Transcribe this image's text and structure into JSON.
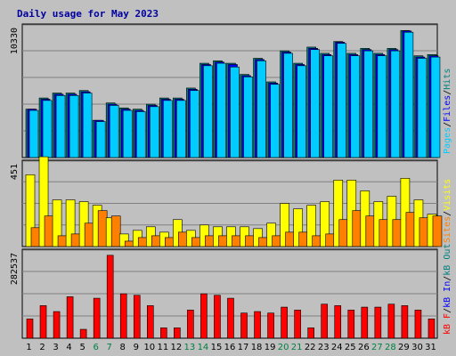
{
  "title": "Daily usage for May 2023",
  "colors": {
    "background": "#c0c0c0",
    "panel": "#c0c0c0",
    "title": "#0000a0",
    "pages": "#00ccff",
    "files": "#0000ff",
    "hits": "#008080",
    "visits": "#ffff00",
    "sites": "#ff8000",
    "kbf": "#ff0000",
    "kbin": "#0000ff",
    "kbout": "#008080",
    "weekend": "#008040",
    "weekday": "#000000"
  },
  "legends": {
    "top": [
      {
        "text": "Pages",
        "color": "#00ccff"
      },
      {
        "text": "/",
        "color": "#000000"
      },
      {
        "text": "Files",
        "color": "#0000ff"
      },
      {
        "text": "/",
        "color": "#000000"
      },
      {
        "text": "Hits",
        "color": "#008080"
      }
    ],
    "mid": [
      {
        "text": "Sites",
        "color": "#ff8000"
      },
      {
        "text": "/",
        "color": "#000000"
      },
      {
        "text": "Visits",
        "color": "#ffff00"
      }
    ],
    "bot": [
      {
        "text": "kB F",
        "color": "#ff0000"
      },
      {
        "text": "/",
        "color": "#000000"
      },
      {
        "text": "kB In",
        "color": "#0000ff"
      },
      {
        "text": "/",
        "color": "#000000"
      },
      {
        "text": "kB Out",
        "color": "#008080"
      }
    ]
  },
  "chart_data": {
    "type": "bar",
    "title": "Daily usage for May 2023",
    "categories": [
      "1",
      "2",
      "3",
      "4",
      "5",
      "6",
      "7",
      "8",
      "9",
      "10",
      "11",
      "12",
      "13",
      "14",
      "15",
      "16",
      "17",
      "18",
      "19",
      "20",
      "21",
      "22",
      "23",
      "24",
      "25",
      "26",
      "27",
      "28",
      "29",
      "30",
      "31"
    ],
    "weekend_days": [
      "6",
      "7",
      "13",
      "14",
      "20",
      "21",
      "27",
      "28"
    ],
    "panels": [
      {
        "name": "hits-files-pages",
        "ymax_label": "10330",
        "ymax": 10330,
        "series": [
          {
            "name": "Hits",
            "color": "#008080",
            "values": [
              3900,
              4800,
              5200,
              5200,
              5400,
              3000,
              4400,
              4000,
              3900,
              4300,
              4800,
              4800,
              5600,
              7600,
              7800,
              7600,
              6700,
              8000,
              6100,
              8600,
              7600,
              8900,
              8400,
              9350,
              8400,
              8800,
              8400,
              8800,
              10240,
              8200,
              8300
            ]
          },
          {
            "name": "Files",
            "color": "#0000ff",
            "values": [
              3900,
              4700,
              5100,
              5100,
              5300,
              3000,
              4300,
              3900,
              3800,
              4200,
              4700,
              4700,
              5500,
              7500,
              7700,
              7500,
              6600,
              7900,
              6000,
              8500,
              7500,
              8800,
              8300,
              9300,
              8300,
              8700,
              8300,
              8700,
              10200,
              8100,
              8200
            ]
          },
          {
            "name": "Pages",
            "color": "#00ccff",
            "values": [
              3800,
              4600,
              5000,
              5000,
              5200,
              2900,
              4200,
              3800,
              3700,
              4100,
              4600,
              4600,
              5400,
              7400,
              7600,
              7300,
              6500,
              7800,
              5900,
              8400,
              7400,
              8700,
              8200,
              9200,
              8200,
              8600,
              8200,
              8600,
              10100,
              8000,
              8100
            ]
          }
        ]
      },
      {
        "name": "visits-sites",
        "ymax_label": "451",
        "ymax": 451,
        "series": [
          {
            "name": "Visits",
            "color": "#ffff00",
            "values": [
              400,
              500,
              260,
              260,
              250,
              230,
              160,
              70,
              90,
              110,
              80,
              150,
              90,
              120,
              110,
              110,
              110,
              100,
              130,
              240,
              210,
              230,
              250,
              370,
              370,
              310,
              250,
              280,
              380,
              260,
              180
            ]
          },
          {
            "name": "Sites",
            "color": "#ff8000",
            "values": [
              105,
              170,
              60,
              70,
              130,
              200,
              170,
              30,
              50,
              60,
              50,
              80,
              50,
              60,
              60,
              60,
              60,
              50,
              60,
              80,
              80,
              60,
              70,
              150,
              200,
              170,
              150,
              150,
              190,
              160,
              170
            ]
          }
        ]
      },
      {
        "name": "kbytes",
        "ymax_label": "282537",
        "ymax": 282537,
        "series": [
          {
            "name": "kB F",
            "color": "#ff0000",
            "values": [
              65000,
              110000,
              90000,
              140000,
              30000,
              135000,
              280000,
              150000,
              145000,
              110000,
              35000,
              35000,
              95000,
              150000,
              145000,
              135000,
              85000,
              90000,
              85000,
              105000,
              95000,
              35000,
              115000,
              110000,
              95000,
              105000,
              105000,
              115000,
              110000,
              95000,
              65000
            ]
          }
        ]
      }
    ]
  }
}
